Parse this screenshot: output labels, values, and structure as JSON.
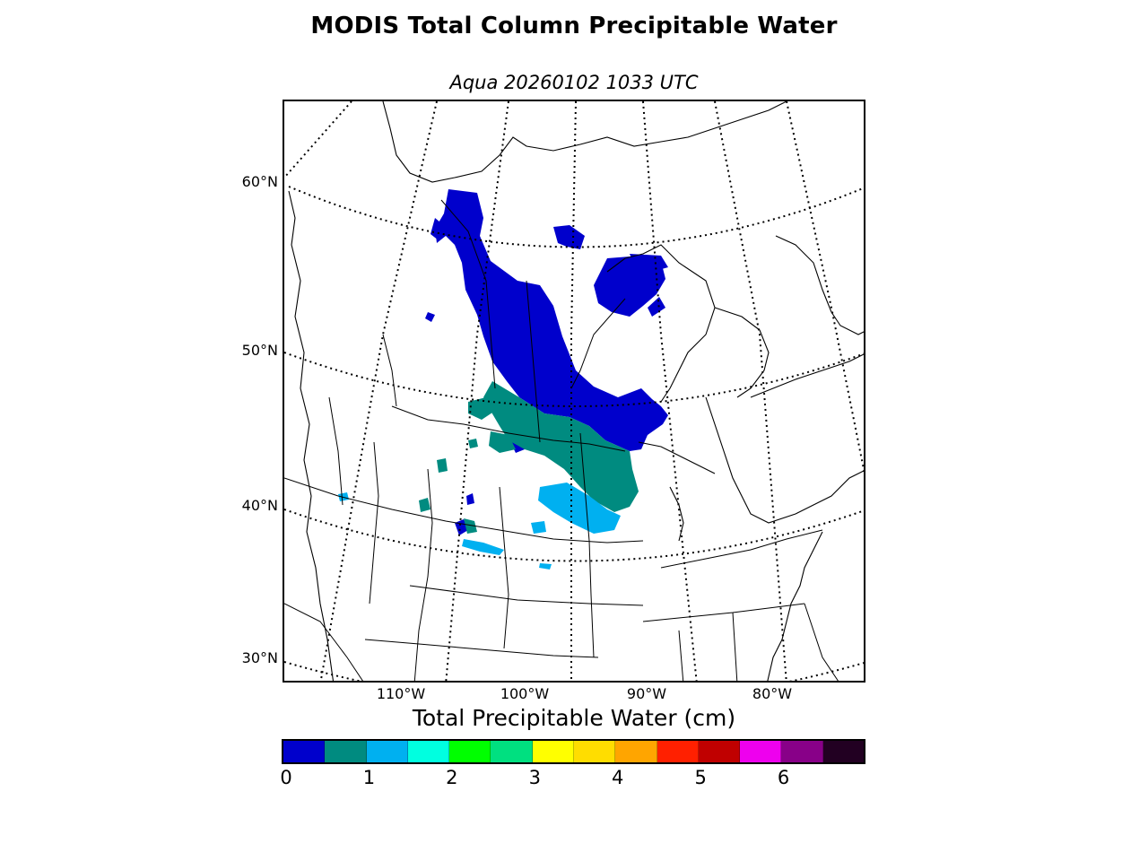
{
  "title": "MODIS Total Column Precipitable Water",
  "subtitle": "Aqua 20260102 1033 UTC",
  "map": {
    "lat_labels": [
      "60°N",
      "50°N",
      "40°N",
      "30°N"
    ],
    "lon_labels": [
      "110°W",
      "100°W",
      "90°W",
      "80°W"
    ]
  },
  "colorbar": {
    "label": "Total Precipitable Water (cm)",
    "min": 0,
    "max": 7,
    "colors": [
      "#0000cc",
      "#008b80",
      "#00b0f0",
      "#00ffe0",
      "#00ff00",
      "#00e080",
      "#ffff00",
      "#ffdd00",
      "#ffa500",
      "#ff2000",
      "#c00000",
      "#ee00ee",
      "#880088",
      "#220022"
    ],
    "tick_labels": [
      "0",
      "1",
      "2",
      "3",
      "4",
      "5",
      "6"
    ]
  },
  "data_legend": {
    "observed_colors": [
      "#0000cc",
      "#008b80",
      "#00b0f0"
    ],
    "note_free": ""
  }
}
